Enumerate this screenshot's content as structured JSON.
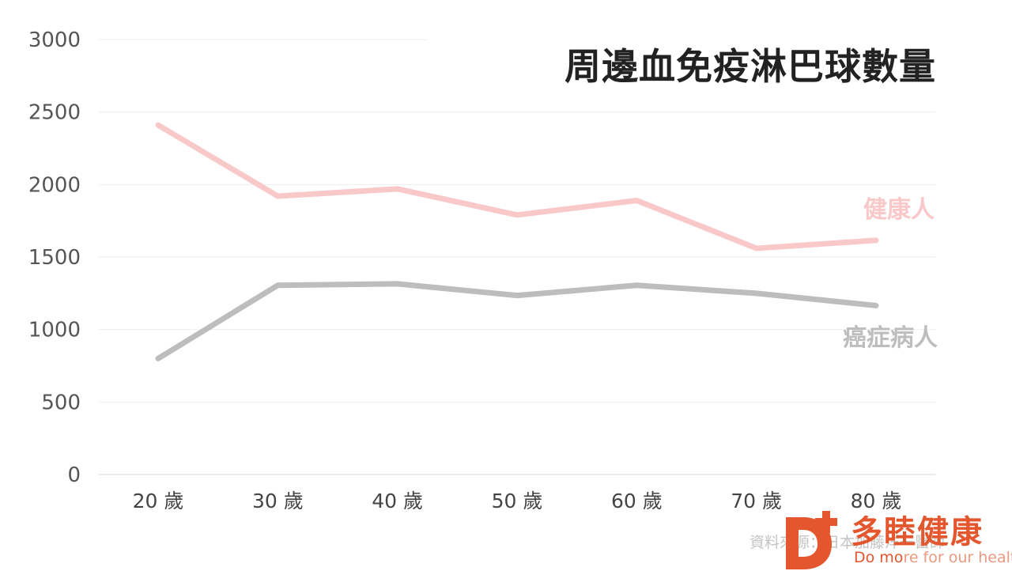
{
  "chart_data": {
    "type": "line",
    "title": "周邊血免疫淋巴球數量",
    "categories": [
      "20 歲",
      "30 歲",
      "40 歲",
      "50 歲",
      "60 歲",
      "70 歲",
      "80 歲"
    ],
    "series": [
      {
        "name": "健康人",
        "values": [
          2410,
          1920,
          1970,
          1790,
          1890,
          1560,
          1615
        ],
        "color": "#f9c8c8"
      },
      {
        "name": "癌症病人",
        "values": [
          800,
          1305,
          1315,
          1235,
          1305,
          1250,
          1165
        ],
        "color": "#bdbdbd"
      }
    ],
    "y_ticks": [
      "0",
      "500",
      "1000",
      "1500",
      "2000",
      "2500",
      "3000"
    ],
    "ylim": [
      0,
      3000
    ],
    "grid": true,
    "legend": "labels at line ends"
  },
  "source_text": "資料來源：日本加藤洋一醫師",
  "logo": {
    "name_cn": "多睦健康",
    "tagline_bold": "Do mo",
    "tagline_rest": "re for our health",
    "color": "#e4572e"
  }
}
